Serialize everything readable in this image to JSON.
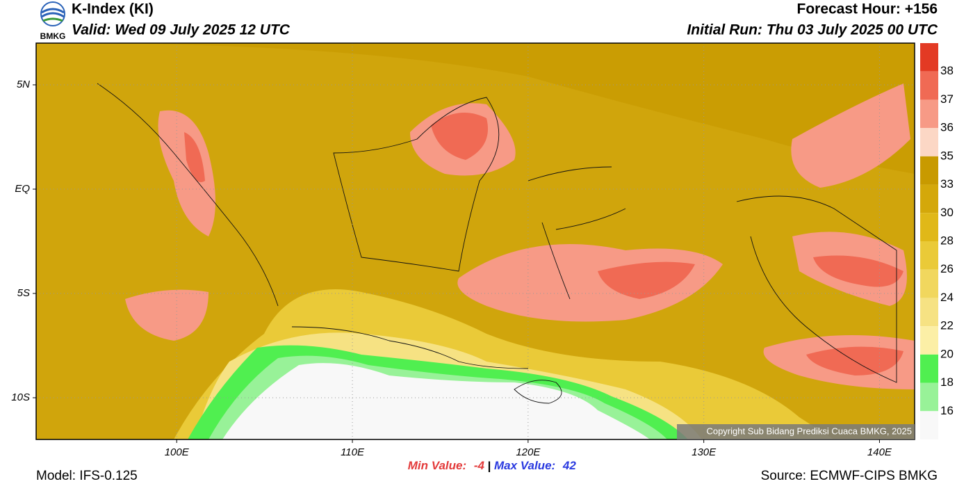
{
  "header": {
    "title": "K-Index (KI)",
    "valid": "Valid: Wed 09 July 2025 12 UTC",
    "forecast_hour": "Forecast Hour: +156",
    "initial_run": "Initial Run: Thu 03 July 2025 00 UTC",
    "logo_text": "BMKG"
  },
  "map": {
    "xlim": [
      92,
      142
    ],
    "ylim": [
      -12,
      7
    ],
    "xticks": [
      {
        "value": 100,
        "label": "100E"
      },
      {
        "value": 110,
        "label": "110E"
      },
      {
        "value": 120,
        "label": "120E"
      },
      {
        "value": 130,
        "label": "130E"
      },
      {
        "value": 140,
        "label": "140E"
      }
    ],
    "yticks": [
      {
        "value": 5,
        "label": "5N"
      },
      {
        "value": 0,
        "label": "EQ"
      },
      {
        "value": -5,
        "label": "5S"
      },
      {
        "value": -10,
        "label": "10S"
      }
    ],
    "grid": true,
    "copyright": "Copyright Sub Bidang Prediksi Cuaca BMKG, 2025"
  },
  "colorbar": {
    "labels": [
      38,
      37,
      36,
      35,
      33,
      30,
      28,
      26,
      24,
      22,
      20,
      18,
      16
    ],
    "colors": [
      "#e33a24",
      "#f06a54",
      "#f79a86",
      "#fcd7c5",
      "#c89a00",
      "#d4a80a",
      "#e0b818",
      "#eaca38",
      "#f1d75e",
      "#f6e283",
      "#fcefa6",
      "#50ef50",
      "#98f298",
      "#f8f8f8"
    ]
  },
  "footer": {
    "min_label": "Min Value:",
    "min_value": -4,
    "separator": "|",
    "max_label": "Max Value:",
    "max_value": 42,
    "model": "Model: IFS-0.125",
    "source": "Source: ECMWF-CIPS BMKG"
  }
}
